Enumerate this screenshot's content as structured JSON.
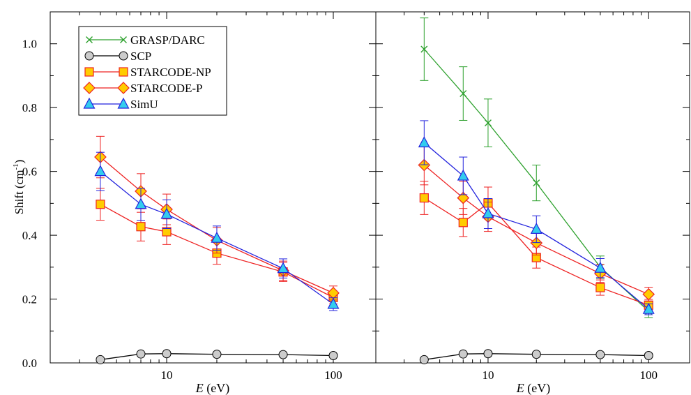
{
  "chart_data": [
    {
      "type": "line",
      "panel": "left",
      "xscale": "log",
      "xlim": [
        2,
        180
      ],
      "ylim": [
        0,
        1.1
      ],
      "xlabel_italic": "E",
      "xlabel_unit": " (eV)",
      "ylabel": "Shift (cm",
      "ylabel_sup": "-1",
      "ylabel_close": ")",
      "xticks": [
        10,
        100
      ],
      "xtick_labels": [
        "10",
        "100"
      ],
      "yticks": [
        0.0,
        0.2,
        0.4,
        0.6,
        0.8,
        1.0
      ],
      "ytick_labels": [
        "0.0",
        "0.2",
        "0.4",
        "0.6",
        "0.8",
        "1.0"
      ],
      "legend_position": "top-left",
      "series": [
        {
          "name": "GRASP/DARC",
          "marker": "x",
          "line_color": "#2ca02c",
          "fill": "none",
          "x": [],
          "y": [],
          "err": []
        },
        {
          "name": "SCP",
          "marker": "circle",
          "line_color": "#000000",
          "fill": "#cccccc",
          "x": [
            4,
            7,
            10,
            20,
            50,
            100
          ],
          "y": [
            0.01,
            0.028,
            0.029,
            0.027,
            0.026,
            0.023
          ],
          "err": [
            0,
            0,
            0,
            0,
            0,
            0
          ]
        },
        {
          "name": "STARCODE-NP",
          "marker": "square",
          "line_color": "#ee2222",
          "fill": "#ffcc00",
          "x": [
            4,
            7,
            10,
            20,
            50,
            100
          ],
          "y": [
            0.497,
            0.427,
            0.411,
            0.344,
            0.285,
            0.205
          ],
          "err": [
            0.05,
            0.045,
            0.04,
            0.035,
            0.03,
            0.02
          ]
        },
        {
          "name": "STARCODE-P",
          "marker": "diamond",
          "line_color": "#ee2222",
          "fill": "#ffcc00",
          "x": [
            4,
            7,
            10,
            20,
            50,
            100
          ],
          "y": [
            0.645,
            0.538,
            0.481,
            0.384,
            0.289,
            0.219
          ],
          "err": [
            0.065,
            0.055,
            0.048,
            0.04,
            0.03,
            0.022
          ]
        },
        {
          "name": "SimU",
          "marker": "triangle",
          "line_color": "#2222dd",
          "fill": "#33ccee",
          "x": [
            4,
            7,
            10,
            20,
            50,
            100
          ],
          "y": [
            0.6,
            0.497,
            0.466,
            0.391,
            0.296,
            0.184
          ],
          "err": [
            0.06,
            0.05,
            0.045,
            0.038,
            0.03,
            0.02
          ]
        }
      ]
    },
    {
      "type": "line",
      "panel": "right",
      "xscale": "log",
      "xlim": [
        2,
        180
      ],
      "ylim": [
        0,
        1.1
      ],
      "xlabel_italic": "E",
      "xlabel_unit": " (eV)",
      "xticks": [
        10,
        100
      ],
      "xtick_labels": [
        "10",
        "100"
      ],
      "series": [
        {
          "name": "GRASP/DARC",
          "marker": "x",
          "line_color": "#2ca02c",
          "fill": "none",
          "x": [
            4,
            7,
            10,
            20,
            50,
            100
          ],
          "y": [
            0.983,
            0.844,
            0.752,
            0.564,
            0.3,
            0.162
          ],
          "err": [
            0.098,
            0.084,
            0.075,
            0.056,
            0.035,
            0.02
          ]
        },
        {
          "name": "SCP",
          "marker": "circle",
          "line_color": "#000000",
          "fill": "#cccccc",
          "x": [
            4,
            7,
            10,
            20,
            50,
            100
          ],
          "y": [
            0.01,
            0.028,
            0.029,
            0.027,
            0.026,
            0.023
          ],
          "err": [
            0,
            0,
            0,
            0,
            0,
            0
          ]
        },
        {
          "name": "STARCODE-NP",
          "marker": "square",
          "line_color": "#ee2222",
          "fill": "#ffcc00",
          "x": [
            4,
            7,
            10,
            20,
            50,
            100
          ],
          "y": [
            0.517,
            0.44,
            0.501,
            0.33,
            0.236,
            0.181
          ],
          "err": [
            0.052,
            0.044,
            0.05,
            0.033,
            0.024,
            0.018
          ]
        },
        {
          "name": "STARCODE-P",
          "marker": "diamond",
          "line_color": "#ee2222",
          "fill": "#ffcc00",
          "x": [
            4,
            7,
            10,
            20,
            50,
            100
          ],
          "y": [
            0.62,
            0.517,
            0.458,
            0.376,
            0.28,
            0.215
          ],
          "err": [
            0.062,
            0.052,
            0.046,
            0.038,
            0.028,
            0.022
          ]
        },
        {
          "name": "SimU",
          "marker": "triangle",
          "line_color": "#2222dd",
          "fill": "#33ccee",
          "x": [
            4,
            7,
            10,
            20,
            50,
            100
          ],
          "y": [
            0.69,
            0.586,
            0.468,
            0.419,
            0.297,
            0.168
          ],
          "err": [
            0.069,
            0.059,
            0.047,
            0.042,
            0.03,
            0.017
          ]
        }
      ]
    }
  ]
}
